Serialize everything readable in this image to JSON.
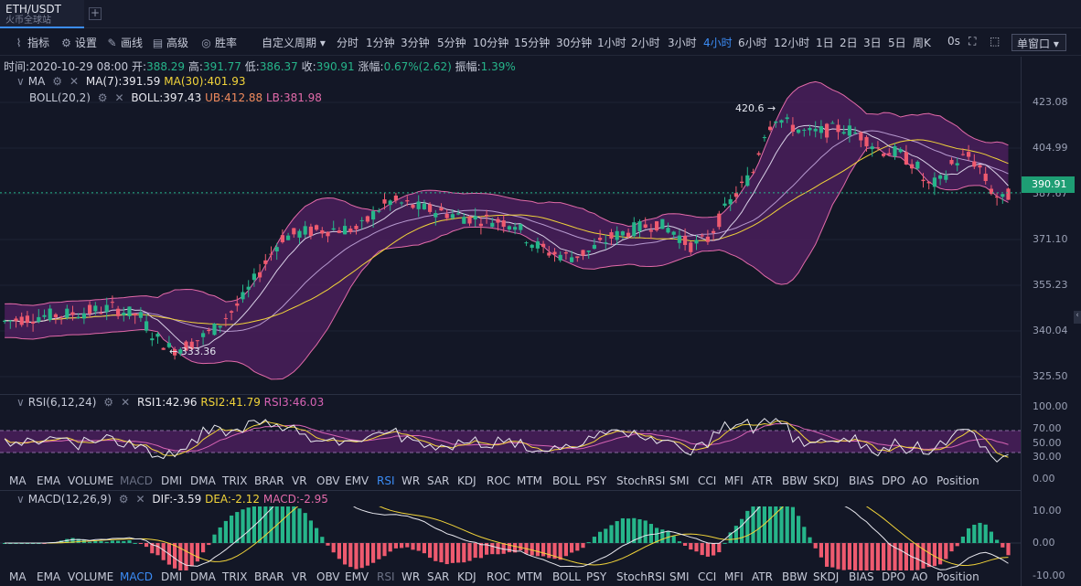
{
  "tab": {
    "symbol": "ETH/USDT",
    "exchange": "火币全球站",
    "add": "+"
  },
  "toolbar": {
    "indicators": "指标",
    "settings": "设置",
    "draw": "画线",
    "advanced": "高级",
    "winrate": "胜率",
    "custom_period": "自定义周期 ▾",
    "periods": [
      "分时",
      "1分钟",
      "3分钟",
      "5分钟",
      "10分钟",
      "15分钟",
      "30分钟",
      "1小时",
      "2小时",
      "3小时",
      "4小时",
      "6小时",
      "12小时",
      "1日",
      "2日",
      "3日",
      "5日",
      "周K"
    ],
    "active_period": "4小时",
    "seconds": "0s",
    "window": "单窗口 ▾"
  },
  "info": {
    "time_label": "时间:",
    "time": "2020-10-29 08:00",
    "open_label": "开:",
    "open": "388.29",
    "high_label": "高:",
    "high": "391.77",
    "low_label": "低:",
    "low": "386.37",
    "close_label": "收:",
    "close": "390.91",
    "change_label": "涨幅:",
    "change": "0.67%(2.62)",
    "amp_label": "振幅:",
    "amp": "1.39%"
  },
  "ma": {
    "name": "MA",
    "ma7": "MA(7):391.59",
    "ma30": "MA(30):401.93"
  },
  "boll": {
    "name": "BOLL(20,2)",
    "boll": "BOLL:397.43",
    "ub": "UB:412.88",
    "lb": "LB:381.98"
  },
  "price_axis": [
    "423.08",
    "404.99",
    "387.67",
    "371.10",
    "355.23",
    "340.04",
    "325.50"
  ],
  "last_price": "390.91",
  "annotations": {
    "high": "420.6",
    "low": "333.36"
  },
  "rsi": {
    "name": "RSI(6,12,24)",
    "rsi1": "RSI1:42.96",
    "rsi2": "RSI2:41.79",
    "rsi3": "RSI3:46.03",
    "axis": [
      "100.00",
      "70.00",
      "50.00",
      "30.00",
      "0.00"
    ]
  },
  "indicator_tabs": [
    "MA",
    "EMA",
    "VOLUME",
    "MACD",
    "DMI",
    "DMA",
    "TRIX",
    "BRAR",
    "VR",
    "OBV",
    "EMV",
    "RSI",
    "WR",
    "SAR",
    "KDJ",
    "ROC",
    "MTM",
    "BOLL",
    "PSY",
    "StochRSI",
    "SMI",
    "CCI",
    "MFI",
    "ATR",
    "BBW",
    "SKDJ",
    "BIAS",
    "DPO",
    "AO",
    "Position"
  ],
  "tabs_row1_active": "RSI",
  "tabs_row1_dim": "MACD",
  "tabs_row2_active": "MACD",
  "tabs_row2_dim": "RSI",
  "macd": {
    "name": "MACD(12,26,9)",
    "dif": "DIF:-3.59",
    "dea": "DEA:-2.12",
    "macd": "MACD:-2.95",
    "axis": [
      "10.00",
      "0.00",
      "-10.00"
    ]
  },
  "colors": {
    "up": "#26b58a",
    "down": "#ee5a6f",
    "band": "#4a1f5c",
    "ma30": "#f2d43a"
  }
}
